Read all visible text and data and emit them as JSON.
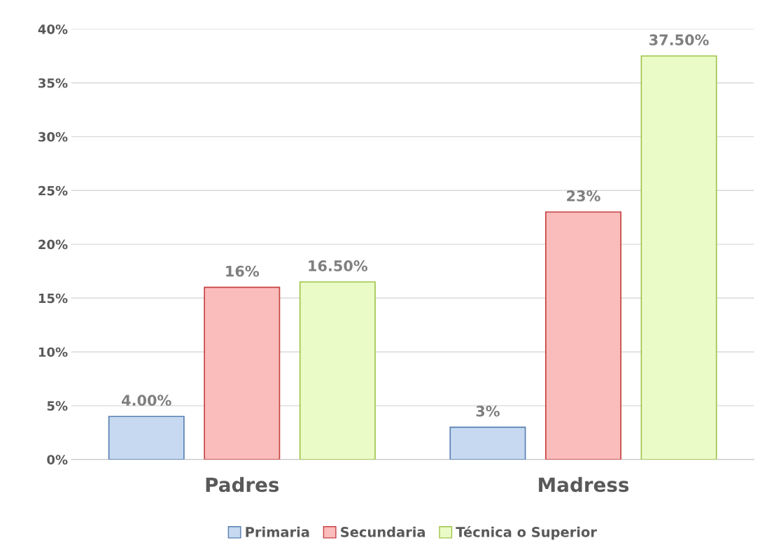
{
  "chart_data": {
    "type": "bar",
    "categories": [
      "Padres",
      "Madress"
    ],
    "series": [
      {
        "name": "Primaria",
        "color": "#c6d9f1",
        "values": [
          4.0,
          3
        ],
        "value_labels": [
          "4.00%",
          "3%"
        ]
      },
      {
        "name": "Secundaria",
        "color": "#fbbcbc",
        "values": [
          16,
          23
        ],
        "value_labels": [
          "16%",
          "23%"
        ]
      },
      {
        "name": "Técnica o Superior",
        "color": "#ebfbc8",
        "values": [
          16.5,
          37.5
        ],
        "value_labels": [
          "16.50%",
          "37.50%"
        ]
      }
    ],
    "ylim": [
      0,
      40
    ],
    "yticks": [
      {
        "value": 0,
        "label": "0%"
      },
      {
        "value": 5,
        "label": "5%"
      },
      {
        "value": 10,
        "label": "10%"
      },
      {
        "value": 15,
        "label": "15%"
      },
      {
        "value": 20,
        "label": "20%"
      },
      {
        "value": 25,
        "label": "25%"
      },
      {
        "value": 30,
        "label": "30%"
      },
      {
        "value": 35,
        "label": "35%"
      },
      {
        "value": 40,
        "label": "40%"
      }
    ],
    "grid": "y",
    "legend": "bottom"
  }
}
